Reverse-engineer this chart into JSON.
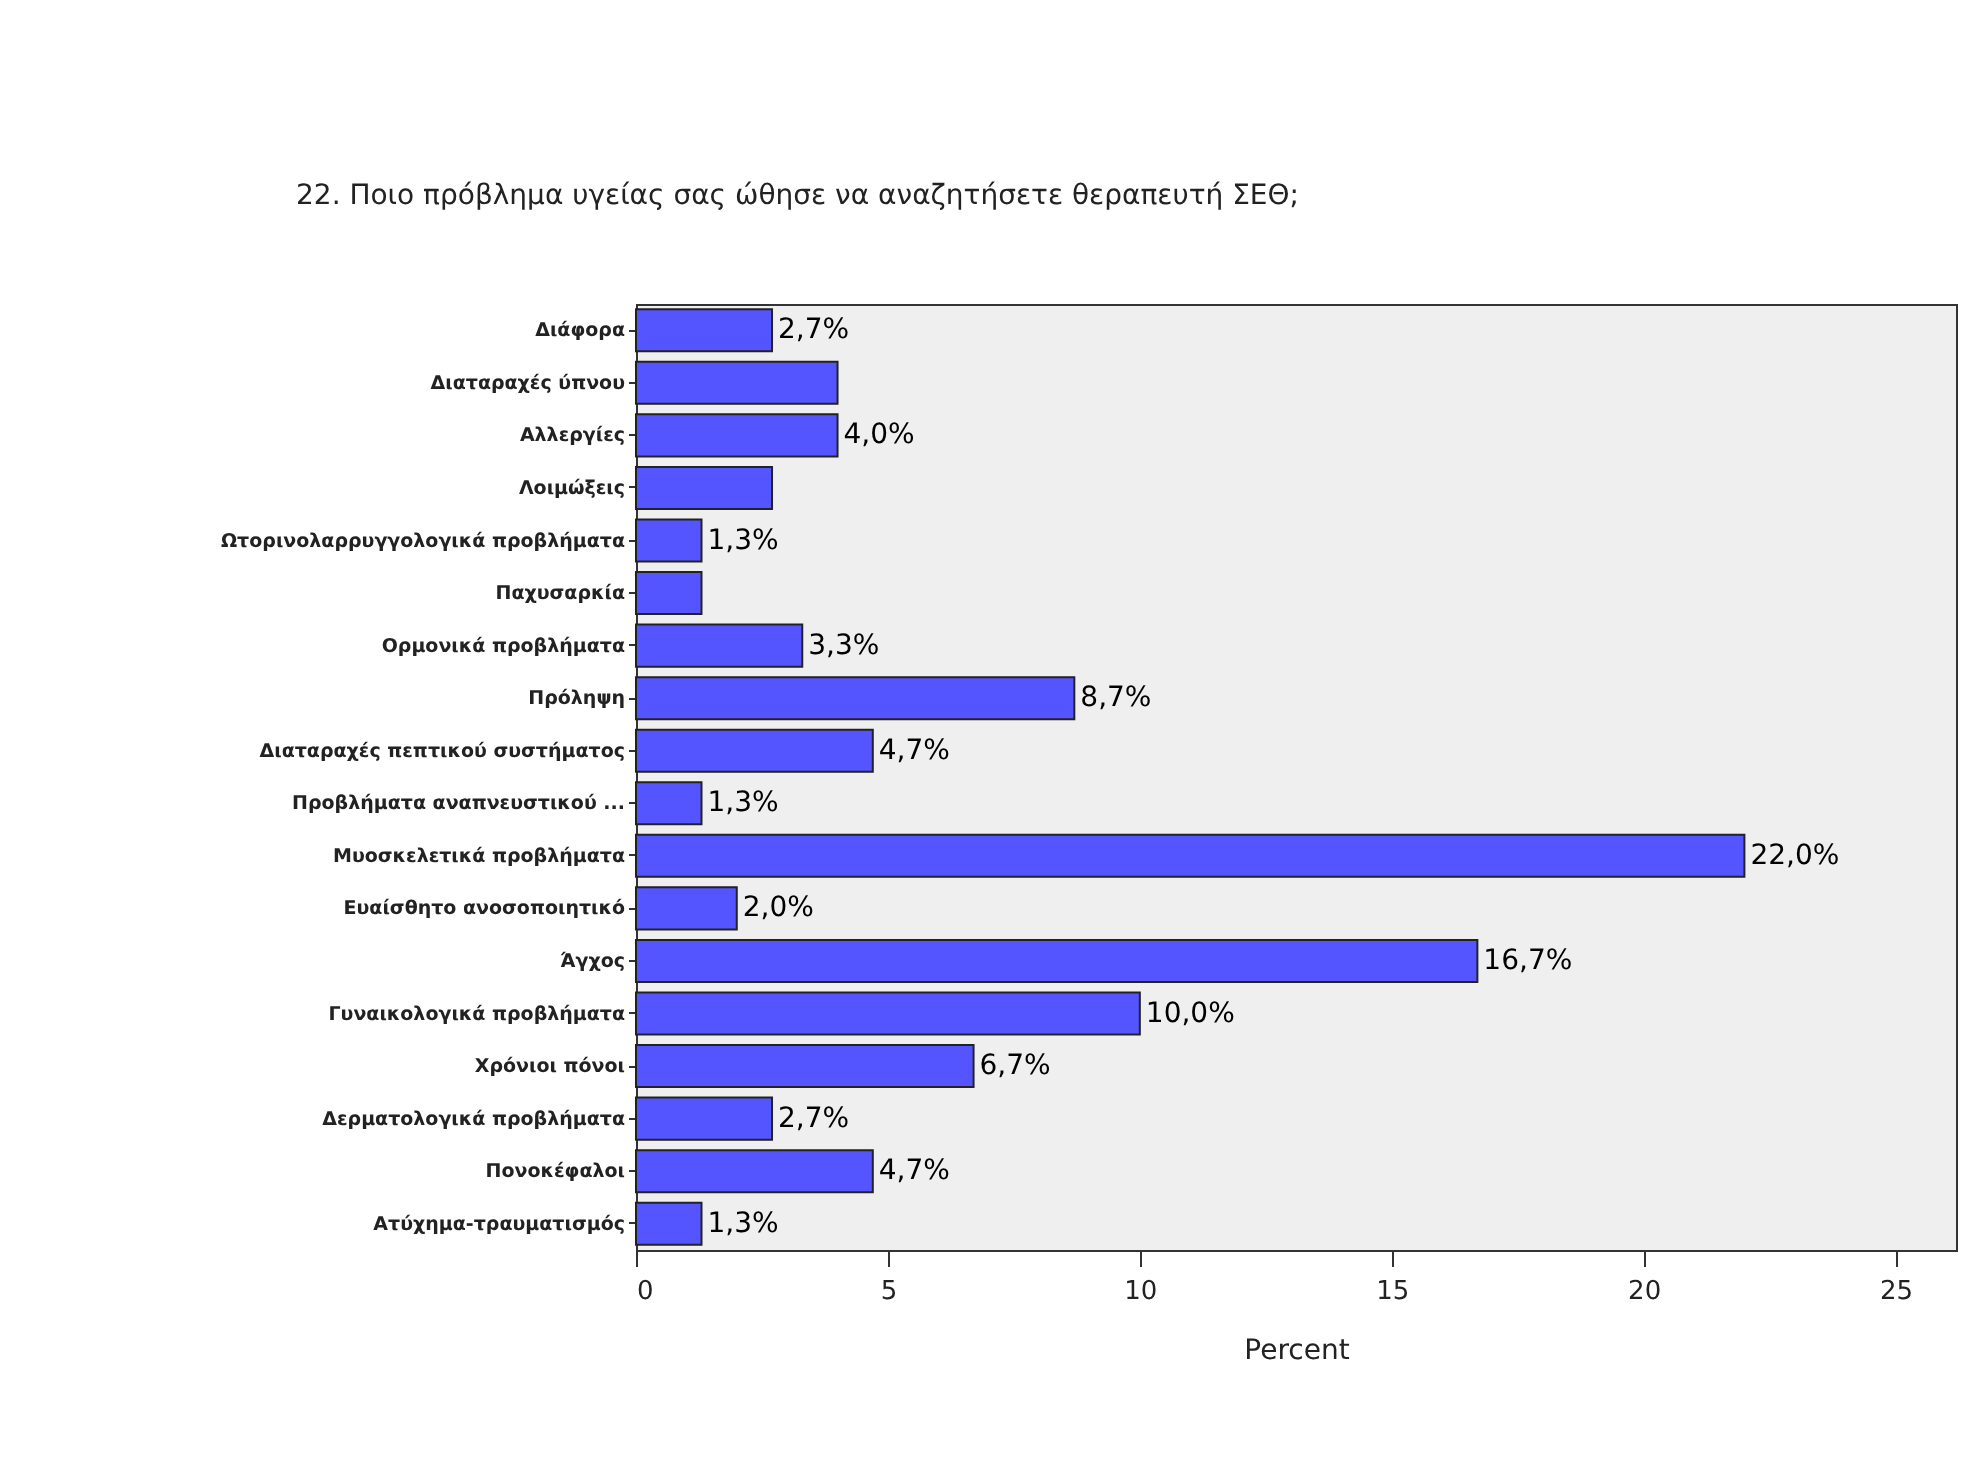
{
  "chart_data": {
    "type": "bar",
    "orientation": "horizontal",
    "title": "22. Ποιο πρόβλημα υγείας σας ώθησε να αναζητήσετε θεραπευτή ΣΕΘ;",
    "xlabel": "Percent",
    "categories": [
      "Διάφορα",
      "Διαταραχές ύπνου",
      "Αλλεργίες",
      "Λοιμώξεις",
      "Ωτορινολαρρυγγολογικά προβλήματα",
      "Παχυσαρκία",
      "Ορμονικά προβλήματα",
      "Πρόληψη",
      "Διαταραχές πεπτικού συστήματος",
      "Προβλήματα αναπνευστικού ...",
      "Μυοσκελετικά προβλήματα",
      "Ευαίσθητο ανοσοποιητικό",
      "Άγχος",
      "Γυναικολογικά προβλήματα",
      "Χρόνιοι πόνοι",
      "Δερματολογικά προβλήματα",
      "Πονοκέφαλοι",
      "Ατύχημα-τραυματισμός"
    ],
    "values": [
      2.7,
      4.0,
      4.0,
      2.7,
      1.3,
      1.3,
      3.3,
      8.7,
      4.7,
      1.3,
      22.0,
      2.0,
      16.7,
      10.0,
      6.7,
      2.7,
      4.7,
      1.3
    ],
    "value_labels": [
      "2,7%",
      null,
      "4,0%",
      null,
      "1,3%",
      null,
      "3,3%",
      "8,7%",
      "4,7%",
      "1,3%",
      "22,0%",
      "2,0%",
      "16,7%",
      "10,0%",
      "6,7%",
      "2,7%",
      "4,7%",
      "1,3%"
    ],
    "color": "#5555ff",
    "xlim": [
      0,
      26.2
    ],
    "xticks": [
      0,
      5,
      10,
      15,
      20,
      25
    ],
    "grid": false
  }
}
